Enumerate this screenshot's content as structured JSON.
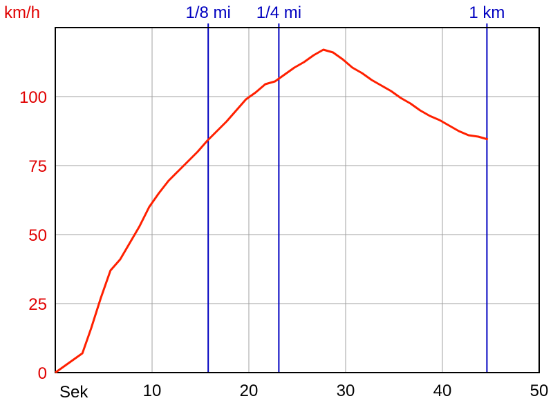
{
  "chart_data": {
    "type": "line",
    "ylabel": "km/h",
    "xlabel": "Sek",
    "xlim": [
      0,
      50
    ],
    "ylim": [
      0,
      125
    ],
    "grid": true,
    "x_ticks": [
      10,
      20,
      30,
      40,
      50
    ],
    "y_ticks": [
      0,
      25,
      50,
      75,
      100
    ],
    "series": [
      {
        "color": "#ff2000",
        "x": [
          0,
          2.8,
          3.7,
          4.7,
          5.7,
          6.7,
          7.7,
          8.7,
          9.7,
          10.7,
          11.7,
          12.7,
          13.7,
          14.7,
          15.7,
          16.7,
          17.7,
          18.7,
          19.7,
          20.7,
          21.7,
          22.7,
          23.7,
          24.7,
          25.7,
          26.7,
          27.7,
          28.7,
          29.7,
          30.7,
          31.7,
          32.7,
          33.7,
          34.7,
          35.7,
          36.7,
          37.7,
          38.7,
          39.7,
          40.7,
          41.7,
          42.7,
          43.7,
          44.7
        ],
        "y": [
          0,
          7,
          16,
          27,
          37,
          41,
          47,
          53,
          60,
          65,
          69.5,
          73,
          76.5,
          80,
          84,
          87.5,
          91,
          95,
          99,
          101.5,
          104.5,
          105.5,
          108,
          110.5,
          112.5,
          115,
          117,
          116,
          113.5,
          110.5,
          108.5,
          106,
          104,
          102,
          99.5,
          97.5,
          95,
          93,
          91.5,
          89.5,
          87.5,
          86,
          85.5,
          84.5
        ]
      }
    ],
    "markers": [
      {
        "label": "1/8 mi",
        "x": 15.8,
        "color": "#0000c0"
      },
      {
        "label": "1/4 mi",
        "x": 23.1,
        "color": "#0000c0"
      },
      {
        "label": "1 km",
        "x": 44.6,
        "color": "#0000c0"
      }
    ]
  }
}
